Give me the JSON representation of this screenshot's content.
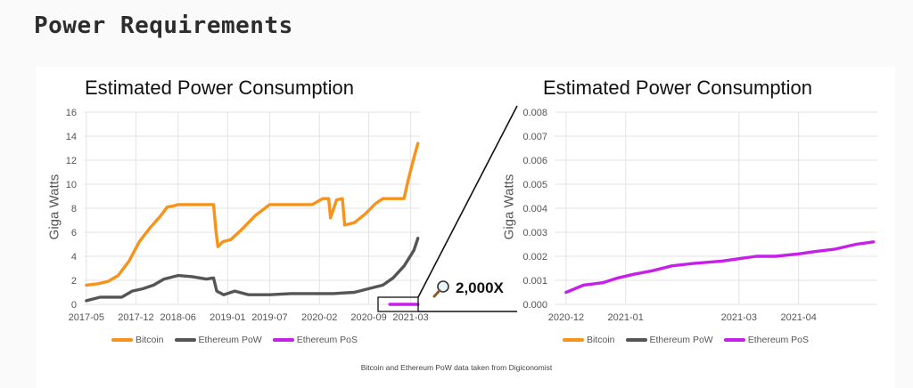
{
  "page": {
    "heading": "Power Requirements",
    "footnote": "Bitcoin and Ethereum PoW data taken from Digiconomist",
    "zoom_label": "2,000X",
    "zoom_icon": "magnifier-icon"
  },
  "colors": {
    "bitcoin": "#f7931a",
    "ethereum_pow": "#555555",
    "ethereum_pos": "#c71fea",
    "grid": "#e3e3e3"
  },
  "legend": [
    "Bitcoin",
    "Ethereum PoW",
    "Ethereum PoS"
  ],
  "chart_data": [
    {
      "type": "line",
      "title": "Estimated Power Consumption",
      "ylabel": "Giga Watts",
      "xlabel": "",
      "ylim": [
        0,
        16
      ],
      "yticks": [
        "0",
        "2",
        "4",
        "6",
        "8",
        "10",
        "12",
        "14",
        "16"
      ],
      "xlim": [
        "2017-05",
        "2021-04"
      ],
      "xticks": [
        "2017-05",
        "2017-12",
        "2018-06",
        "2019-01",
        "2019-07",
        "2020-02",
        "2020-09",
        "2021-03"
      ],
      "grid": true,
      "legend_position": "bottom",
      "series": [
        {
          "name": "Bitcoin",
          "color": "#f7931a",
          "points": [
            [
              "2017-05-01",
              1.6
            ],
            [
              "2017-06-15",
              1.7
            ],
            [
              "2017-08-01",
              1.9
            ],
            [
              "2017-09-15",
              2.4
            ],
            [
              "2017-11-01",
              3.6
            ],
            [
              "2017-12-15",
              5.2
            ],
            [
              "2018-02-01",
              6.4
            ],
            [
              "2018-03-15",
              7.3
            ],
            [
              "2018-04-15",
              8.1
            ],
            [
              "2018-05-15",
              8.2
            ],
            [
              "2018-06-01",
              8.3
            ],
            [
              "2018-11-01",
              8.3
            ],
            [
              "2018-11-12",
              6.0
            ],
            [
              "2018-11-20",
              4.8
            ],
            [
              "2018-12-10",
              5.2
            ],
            [
              "2019-01-15",
              5.4
            ],
            [
              "2019-03-01",
              6.2
            ],
            [
              "2019-05-01",
              7.4
            ],
            [
              "2019-07-01",
              8.3
            ],
            [
              "2020-01-01",
              8.3
            ],
            [
              "2020-02-15",
              8.8
            ],
            [
              "2020-03-12",
              8.8
            ],
            [
              "2020-03-20",
              7.2
            ],
            [
              "2020-04-15",
              8.7
            ],
            [
              "2020-05-10",
              8.8
            ],
            [
              "2020-05-20",
              6.6
            ],
            [
              "2020-07-01",
              6.8
            ],
            [
              "2020-08-15",
              7.5
            ],
            [
              "2020-10-01",
              8.4
            ],
            [
              "2020-11-01",
              8.8
            ],
            [
              "2021-01-31",
              8.8
            ],
            [
              "2021-02-20",
              10.5
            ],
            [
              "2021-03-15",
              12.2
            ],
            [
              "2021-04-01",
              13.4
            ]
          ]
        },
        {
          "name": "Ethereum PoW",
          "color": "#555555",
          "points": [
            [
              "2017-05-01",
              0.3
            ],
            [
              "2017-07-01",
              0.6
            ],
            [
              "2017-09-01",
              0.6
            ],
            [
              "2017-10-01",
              0.6
            ],
            [
              "2017-11-15",
              1.1
            ],
            [
              "2018-01-01",
              1.3
            ],
            [
              "2018-02-15",
              1.6
            ],
            [
              "2018-04-01",
              2.1
            ],
            [
              "2018-06-01",
              2.4
            ],
            [
              "2018-08-01",
              2.3
            ],
            [
              "2018-10-01",
              2.1
            ],
            [
              "2018-11-01",
              2.2
            ],
            [
              "2018-11-15",
              1.1
            ],
            [
              "2018-12-15",
              0.8
            ],
            [
              "2019-02-01",
              1.1
            ],
            [
              "2019-04-01",
              0.8
            ],
            [
              "2019-07-01",
              0.8
            ],
            [
              "2019-10-01",
              0.9
            ],
            [
              "2020-01-01",
              0.9
            ],
            [
              "2020-04-01",
              0.9
            ],
            [
              "2020-07-01",
              1.0
            ],
            [
              "2020-09-01",
              1.3
            ],
            [
              "2020-11-01",
              1.6
            ],
            [
              "2020-12-15",
              2.2
            ],
            [
              "2021-02-01",
              3.2
            ],
            [
              "2021-03-15",
              4.5
            ],
            [
              "2021-04-01",
              5.5
            ]
          ]
        },
        {
          "name": "Ethereum PoS",
          "color": "#c71fea",
          "points": [
            [
              "2020-12-01",
              0.002
            ],
            [
              "2021-04-01",
              0.002
            ]
          ]
        }
      ]
    },
    {
      "type": "line",
      "title": "Estimated Power Consumption",
      "ylabel": "Giga Watts",
      "xlabel": "",
      "ylim": [
        0,
        0.008
      ],
      "yticks": [
        "0.000",
        "0.001",
        "0.002",
        "0.003",
        "0.004",
        "0.005",
        "0.006",
        "0.007",
        "0.008"
      ],
      "xlim": [
        "2020-12",
        "2021-04"
      ],
      "xticks": [
        "2020-12",
        "2021-01",
        "2021-03",
        "2021-04"
      ],
      "grid": true,
      "legend_position": "bottom",
      "series": [
        {
          "name": "Ethereum PoS",
          "color": "#c71fea",
          "points": [
            [
              "2020-12-01",
              0.0005
            ],
            [
              "2020-12-10",
              0.0008
            ],
            [
              "2020-12-20",
              0.0009
            ],
            [
              "2020-12-28",
              0.0011
            ],
            [
              "2021-01-05",
              0.00125
            ],
            [
              "2021-01-15",
              0.0014
            ],
            [
              "2021-01-25",
              0.0016
            ],
            [
              "2021-02-05",
              0.0017
            ],
            [
              "2021-02-20",
              0.0018
            ],
            [
              "2021-03-01",
              0.0019
            ],
            [
              "2021-03-10",
              0.002
            ],
            [
              "2021-03-20",
              0.002
            ],
            [
              "2021-04-01",
              0.0021
            ],
            [
              "2021-04-10",
              0.0022
            ],
            [
              "2021-04-20",
              0.0023
            ],
            [
              "2021-05-01",
              0.0025
            ],
            [
              "2021-05-10",
              0.0026
            ]
          ]
        }
      ]
    }
  ]
}
